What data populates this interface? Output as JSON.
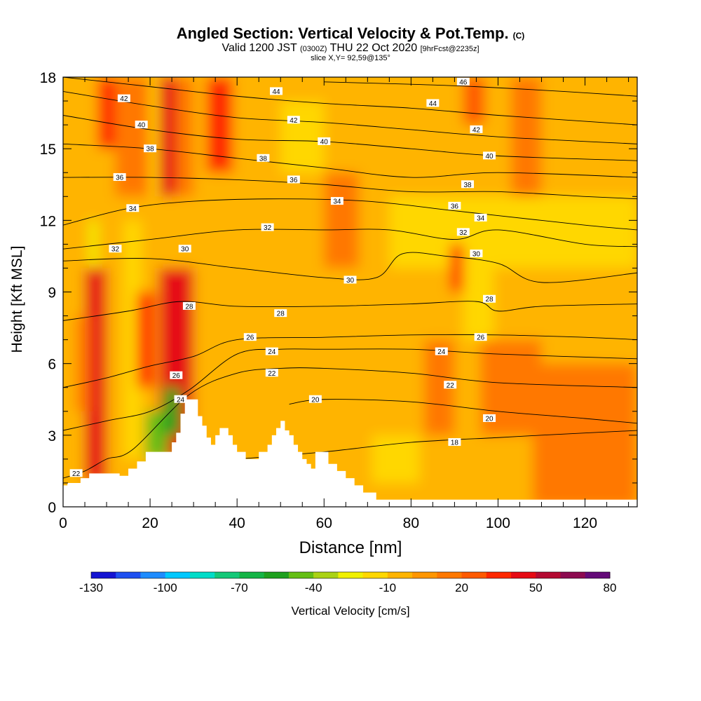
{
  "title": {
    "main": "Angled Section: Vertical Velocity & Pot.Temp.",
    "copyright": "(C)",
    "valid_prefix": "Valid 1200 JST",
    "valid_utc": "(0300Z)",
    "valid_date": "THU 22 Oct 2020",
    "forecast": "[9hrFcst@2235z]",
    "slice": "slice X,Y= 92,59@135°"
  },
  "chart_data": {
    "type": "heatmap",
    "xlabel": "Distance [nm]",
    "ylabel": "Height [Kft MSL]",
    "xlim": [
      0,
      132
    ],
    "ylim": [
      0,
      18
    ],
    "x_ticks": [
      0,
      20,
      40,
      60,
      80,
      100,
      120
    ],
    "y_ticks": [
      0,
      3,
      6,
      9,
      12,
      15,
      18
    ],
    "colorbar": {
      "label": "Vertical Velocity [cm/s]",
      "tick_labels": [
        "-130",
        "-100",
        "-70",
        "-40",
        "-10",
        "20",
        "50",
        "80"
      ],
      "colors": [
        "#1414d2",
        "#1e50f0",
        "#1e8cff",
        "#00c8ff",
        "#00dcc8",
        "#14c878",
        "#14b446",
        "#1ea01e",
        "#64be14",
        "#aad214",
        "#f0f000",
        "#ffd700",
        "#ffb400",
        "#ff9600",
        "#ff7800",
        "#ff5a00",
        "#ff2800",
        "#e60a14",
        "#b40a32",
        "#8c0a50",
        "#640a78"
      ]
    },
    "terrain_top_kft": [
      [
        0,
        0.9
      ],
      [
        1,
        0.9
      ],
      [
        1,
        1.0
      ],
      [
        4,
        1.0
      ],
      [
        4,
        1.2
      ],
      [
        6,
        1.2
      ],
      [
        6,
        1.4
      ],
      [
        13,
        1.4
      ],
      [
        13,
        1.3
      ],
      [
        15,
        1.3
      ],
      [
        15,
        1.6
      ],
      [
        17,
        1.6
      ],
      [
        17,
        1.9
      ],
      [
        19,
        1.9
      ],
      [
        19,
        2.3
      ],
      [
        25,
        2.3
      ],
      [
        25,
        2.7
      ],
      [
        26,
        2.7
      ],
      [
        26,
        3.1
      ],
      [
        27,
        3.1
      ],
      [
        27,
        3.9
      ],
      [
        28,
        3.9
      ],
      [
        28,
        4.5
      ],
      [
        31,
        4.5
      ],
      [
        31,
        3.8
      ],
      [
        32,
        3.8
      ],
      [
        32,
        3.4
      ],
      [
        33,
        3.4
      ],
      [
        33,
        2.9
      ],
      [
        34,
        2.9
      ],
      [
        34,
        2.6
      ],
      [
        35,
        2.6
      ],
      [
        35,
        3.0
      ],
      [
        36,
        3.0
      ],
      [
        36,
        3.3
      ],
      [
        38,
        3.3
      ],
      [
        38,
        3.0
      ],
      [
        39,
        3.0
      ],
      [
        39,
        2.6
      ],
      [
        40,
        2.6
      ],
      [
        40,
        2.3
      ],
      [
        42,
        2.3
      ],
      [
        42,
        2.0
      ],
      [
        45,
        2.0
      ],
      [
        45,
        2.3
      ],
      [
        47,
        2.3
      ],
      [
        47,
        2.6
      ],
      [
        48,
        2.6
      ],
      [
        48,
        3.0
      ],
      [
        49,
        3.0
      ],
      [
        49,
        3.3
      ],
      [
        50,
        3.3
      ],
      [
        50,
        3.6
      ],
      [
        51,
        3.6
      ],
      [
        51,
        3.2
      ],
      [
        52,
        3.2
      ],
      [
        52,
        3.0
      ],
      [
        53,
        3.0
      ],
      [
        53,
        2.6
      ],
      [
        54,
        2.6
      ],
      [
        54,
        2.3
      ],
      [
        55,
        2.3
      ],
      [
        55,
        2.0
      ],
      [
        56,
        2.0
      ],
      [
        56,
        1.8
      ],
      [
        57,
        1.8
      ],
      [
        57,
        1.6
      ],
      [
        58,
        1.6
      ],
      [
        58,
        2.3
      ],
      [
        61,
        2.3
      ],
      [
        61,
        1.8
      ],
      [
        63,
        1.8
      ],
      [
        63,
        1.5
      ],
      [
        65,
        1.5
      ],
      [
        65,
        1.2
      ],
      [
        67,
        1.2
      ],
      [
        67,
        0.9
      ],
      [
        69,
        0.9
      ],
      [
        69,
        0.6
      ],
      [
        72,
        0.6
      ],
      [
        72,
        0.3
      ],
      [
        132,
        0.3
      ]
    ],
    "cells": [
      {
        "x": [
          0,
          132
        ],
        "y": [
          0,
          18
        ],
        "value": -5
      },
      {
        "x": [
          12,
          30
        ],
        "y": [
          13,
          18
        ],
        "value": 10
      },
      {
        "x": [
          75,
          132
        ],
        "y": [
          10,
          13
        ],
        "value": -12
      },
      {
        "x": [
          14,
          18
        ],
        "y": [
          2,
          12
        ],
        "value": -12
      },
      {
        "x": [
          6,
          9
        ],
        "y": [
          2,
          9
        ],
        "value": 60
      },
      {
        "x": [
          5,
          10
        ],
        "y": [
          1,
          10
        ],
        "value": 40
      },
      {
        "x": [
          24,
          28
        ],
        "y": [
          4,
          10
        ],
        "value": 70
      },
      {
        "x": [
          22,
          30
        ],
        "y": [
          2,
          10
        ],
        "value": 40
      },
      {
        "x": [
          17,
          21
        ],
        "y": [
          5,
          9
        ],
        "value": 30
      },
      {
        "x": [
          21,
          26
        ],
        "y": [
          13,
          18
        ],
        "value": 40
      },
      {
        "x": [
          33,
          39
        ],
        "y": [
          14,
          18
        ],
        "value": 35
      },
      {
        "x": [
          8,
          12
        ],
        "y": [
          15,
          18
        ],
        "value": 30
      },
      {
        "x": [
          19,
          24
        ],
        "y": [
          2,
          4
        ],
        "value": -50
      },
      {
        "x": [
          23,
          27
        ],
        "y": [
          3,
          5
        ],
        "value": -60
      },
      {
        "x": [
          6,
          8
        ],
        "y": [
          10,
          12
        ],
        "value": -30
      },
      {
        "x": [
          20,
          22
        ],
        "y": [
          13,
          18
        ],
        "value": -15
      },
      {
        "x": [
          50,
          60
        ],
        "y": [
          14,
          17
        ],
        "value": -15
      },
      {
        "x": [
          92,
          99
        ],
        "y": [
          7,
          11
        ],
        "value": -15
      },
      {
        "x": [
          89,
          92
        ],
        "y": [
          9,
          11
        ],
        "value": 30
      },
      {
        "x": [
          60,
          68
        ],
        "y": [
          10,
          14
        ],
        "value": 15
      },
      {
        "x": [
          83,
          90
        ],
        "y": [
          3,
          7
        ],
        "value": 10
      },
      {
        "x": [
          96,
          110
        ],
        "y": [
          3,
          7
        ],
        "value": 12
      },
      {
        "x": [
          108,
          132
        ],
        "y": [
          0,
          6
        ],
        "value": 10
      },
      {
        "x": [
          103,
          110
        ],
        "y": [
          13,
          18
        ],
        "value": 12
      },
      {
        "x": [
          92,
          97
        ],
        "y": [
          16,
          18
        ],
        "value": 25
      },
      {
        "x": [
          3,
          6
        ],
        "y": [
          4,
          8
        ],
        "value": 10
      },
      {
        "x": [
          71,
          82
        ],
        "y": [
          1,
          3
        ],
        "value": -15
      }
    ],
    "isentropes": [
      {
        "label": "18",
        "points": [
          [
            40,
            2.0
          ],
          [
            60,
            2.3
          ],
          [
            80,
            2.7
          ],
          [
            100,
            2.9
          ],
          [
            110,
            3.0
          ],
          [
            132,
            3.2
          ]
        ]
      },
      {
        "label": "20",
        "points": [
          [
            52,
            4.3
          ],
          [
            60,
            4.5
          ],
          [
            80,
            4.4
          ],
          [
            100,
            4.0
          ],
          [
            120,
            3.7
          ],
          [
            132,
            3.5
          ]
        ]
      },
      {
        "label": "22",
        "points": [
          [
            0,
            1.2
          ],
          [
            5,
            1.5
          ],
          [
            10,
            2.0
          ],
          [
            16,
            2.4
          ],
          [
            29,
            4.7
          ],
          [
            40,
            5.6
          ],
          [
            50,
            5.8
          ],
          [
            60,
            5.8
          ],
          [
            80,
            5.6
          ],
          [
            100,
            5.2
          ],
          [
            132,
            5.0
          ]
        ]
      },
      {
        "label": "24",
        "points": [
          [
            0,
            3.2
          ],
          [
            10,
            3.6
          ],
          [
            20,
            4.0
          ],
          [
            29,
            4.9
          ],
          [
            40,
            6.4
          ],
          [
            50,
            6.6
          ],
          [
            60,
            6.6
          ],
          [
            80,
            6.6
          ],
          [
            100,
            6.4
          ],
          [
            132,
            6.2
          ]
        ]
      },
      {
        "label": "26",
        "points": [
          [
            0,
            5.0
          ],
          [
            10,
            5.4
          ],
          [
            20,
            5.9
          ],
          [
            30,
            6.3
          ],
          [
            40,
            7.0
          ],
          [
            60,
            7.1
          ],
          [
            80,
            7.2
          ],
          [
            100,
            7.2
          ],
          [
            120,
            7.1
          ],
          [
            132,
            7.0
          ]
        ]
      },
      {
        "label": "28",
        "points": [
          [
            0,
            7.8
          ],
          [
            15,
            8.2
          ],
          [
            27,
            8.6
          ],
          [
            40,
            8.4
          ],
          [
            60,
            8.4
          ],
          [
            80,
            8.5
          ],
          [
            95,
            8.6
          ],
          [
            100,
            8.2
          ],
          [
            110,
            8.4
          ],
          [
            132,
            8.5
          ]
        ]
      },
      {
        "label": "30",
        "points": [
          [
            0,
            10.3
          ],
          [
            20,
            10.4
          ],
          [
            40,
            10.0
          ],
          [
            60,
            9.6
          ],
          [
            72,
            9.6
          ],
          [
            78,
            10.6
          ],
          [
            88,
            10.5
          ],
          [
            100,
            10.2
          ],
          [
            110,
            9.4
          ],
          [
            132,
            9.8
          ]
        ]
      },
      {
        "label": "32",
        "points": [
          [
            0,
            10.8
          ],
          [
            20,
            11.2
          ],
          [
            40,
            11.6
          ],
          [
            60,
            11.6
          ],
          [
            75,
            11.6
          ],
          [
            90,
            11.2
          ],
          [
            100,
            11.6
          ],
          [
            120,
            11.0
          ],
          [
            132,
            10.9
          ]
        ]
      },
      {
        "label": "34",
        "points": [
          [
            0,
            11.8
          ],
          [
            15,
            12.5
          ],
          [
            30,
            12.8
          ],
          [
            50,
            12.9
          ],
          [
            70,
            12.8
          ],
          [
            90,
            12.4
          ],
          [
            100,
            12.2
          ],
          [
            120,
            11.8
          ],
          [
            132,
            11.6
          ]
        ]
      },
      {
        "label": "36",
        "points": [
          [
            0,
            13.8
          ],
          [
            20,
            13.8
          ],
          [
            40,
            13.7
          ],
          [
            60,
            13.5
          ],
          [
            80,
            13.2
          ],
          [
            100,
            13.2
          ],
          [
            120,
            13.0
          ],
          [
            132,
            12.9
          ]
        ]
      },
      {
        "label": "38",
        "points": [
          [
            0,
            15.2
          ],
          [
            20,
            15.0
          ],
          [
            40,
            14.6
          ],
          [
            60,
            14.2
          ],
          [
            80,
            13.8
          ],
          [
            100,
            14.0
          ],
          [
            132,
            13.8
          ]
        ]
      },
      {
        "label": "40",
        "points": [
          [
            0,
            16.4
          ],
          [
            20,
            15.8
          ],
          [
            40,
            15.4
          ],
          [
            60,
            15.3
          ],
          [
            80,
            15.0
          ],
          [
            100,
            14.7
          ],
          [
            132,
            14.5
          ]
        ]
      },
      {
        "label": "42",
        "points": [
          [
            0,
            17.4
          ],
          [
            20,
            16.8
          ],
          [
            40,
            16.3
          ],
          [
            60,
            16.1
          ],
          [
            80,
            15.8
          ],
          [
            100,
            15.5
          ],
          [
            132,
            15.2
          ]
        ]
      },
      {
        "label": "44",
        "points": [
          [
            0,
            18.0
          ],
          [
            20,
            17.6
          ],
          [
            40,
            17.2
          ],
          [
            60,
            16.9
          ],
          [
            80,
            16.7
          ],
          [
            100,
            16.4
          ],
          [
            132,
            16.0
          ]
        ]
      },
      {
        "label": "46",
        "points": [
          [
            60,
            17.8
          ],
          [
            80,
            17.7
          ],
          [
            95,
            17.6
          ],
          [
            115,
            17.4
          ],
          [
            132,
            17.2
          ]
        ]
      }
    ],
    "contour_labels": [
      {
        "text": "22",
        "x": 3,
        "y": 1.4
      },
      {
        "text": "42",
        "x": 14,
        "y": 17.1
      },
      {
        "text": "40",
        "x": 18,
        "y": 16.0
      },
      {
        "text": "38",
        "x": 20,
        "y": 15.0
      },
      {
        "text": "36",
        "x": 13,
        "y": 13.8
      },
      {
        "text": "34",
        "x": 16,
        "y": 12.5
      },
      {
        "text": "32",
        "x": 12,
        "y": 10.8
      },
      {
        "text": "30",
        "x": 28,
        "y": 10.8
      },
      {
        "text": "28",
        "x": 29,
        "y": 8.4
      },
      {
        "text": "26",
        "x": 26,
        "y": 5.5
      },
      {
        "text": "24",
        "x": 27,
        "y": 4.5
      },
      {
        "text": "26",
        "x": 43,
        "y": 7.1
      },
      {
        "text": "24",
        "x": 48,
        "y": 6.5
      },
      {
        "text": "22",
        "x": 48,
        "y": 5.6
      },
      {
        "text": "28",
        "x": 50,
        "y": 8.1
      },
      {
        "text": "20",
        "x": 58,
        "y": 4.5
      },
      {
        "text": "30",
        "x": 66,
        "y": 9.5
      },
      {
        "text": "32",
        "x": 47,
        "y": 11.7
      },
      {
        "text": "34",
        "x": 63,
        "y": 12.8
      },
      {
        "text": "36",
        "x": 53,
        "y": 13.7
      },
      {
        "text": "38",
        "x": 46,
        "y": 14.6
      },
      {
        "text": "40",
        "x": 60,
        "y": 15.3
      },
      {
        "text": "42",
        "x": 53,
        "y": 16.2
      },
      {
        "text": "44",
        "x": 49,
        "y": 17.4
      },
      {
        "text": "46",
        "x": 92,
        "y": 17.8
      },
      {
        "text": "44",
        "x": 85,
        "y": 16.9
      },
      {
        "text": "42",
        "x": 95,
        "y": 15.8
      },
      {
        "text": "40",
        "x": 98,
        "y": 14.7
      },
      {
        "text": "38",
        "x": 93,
        "y": 13.5
      },
      {
        "text": "36",
        "x": 90,
        "y": 12.6
      },
      {
        "text": "34",
        "x": 96,
        "y": 12.1
      },
      {
        "text": "32",
        "x": 92,
        "y": 11.5
      },
      {
        "text": "30",
        "x": 95,
        "y": 10.6
      },
      {
        "text": "28",
        "x": 98,
        "y": 8.7
      },
      {
        "text": "26",
        "x": 96,
        "y": 7.1
      },
      {
        "text": "24",
        "x": 87,
        "y": 6.5
      },
      {
        "text": "22",
        "x": 89,
        "y": 5.1
      },
      {
        "text": "20",
        "x": 98,
        "y": 3.7
      },
      {
        "text": "18",
        "x": 90,
        "y": 2.7
      }
    ]
  }
}
